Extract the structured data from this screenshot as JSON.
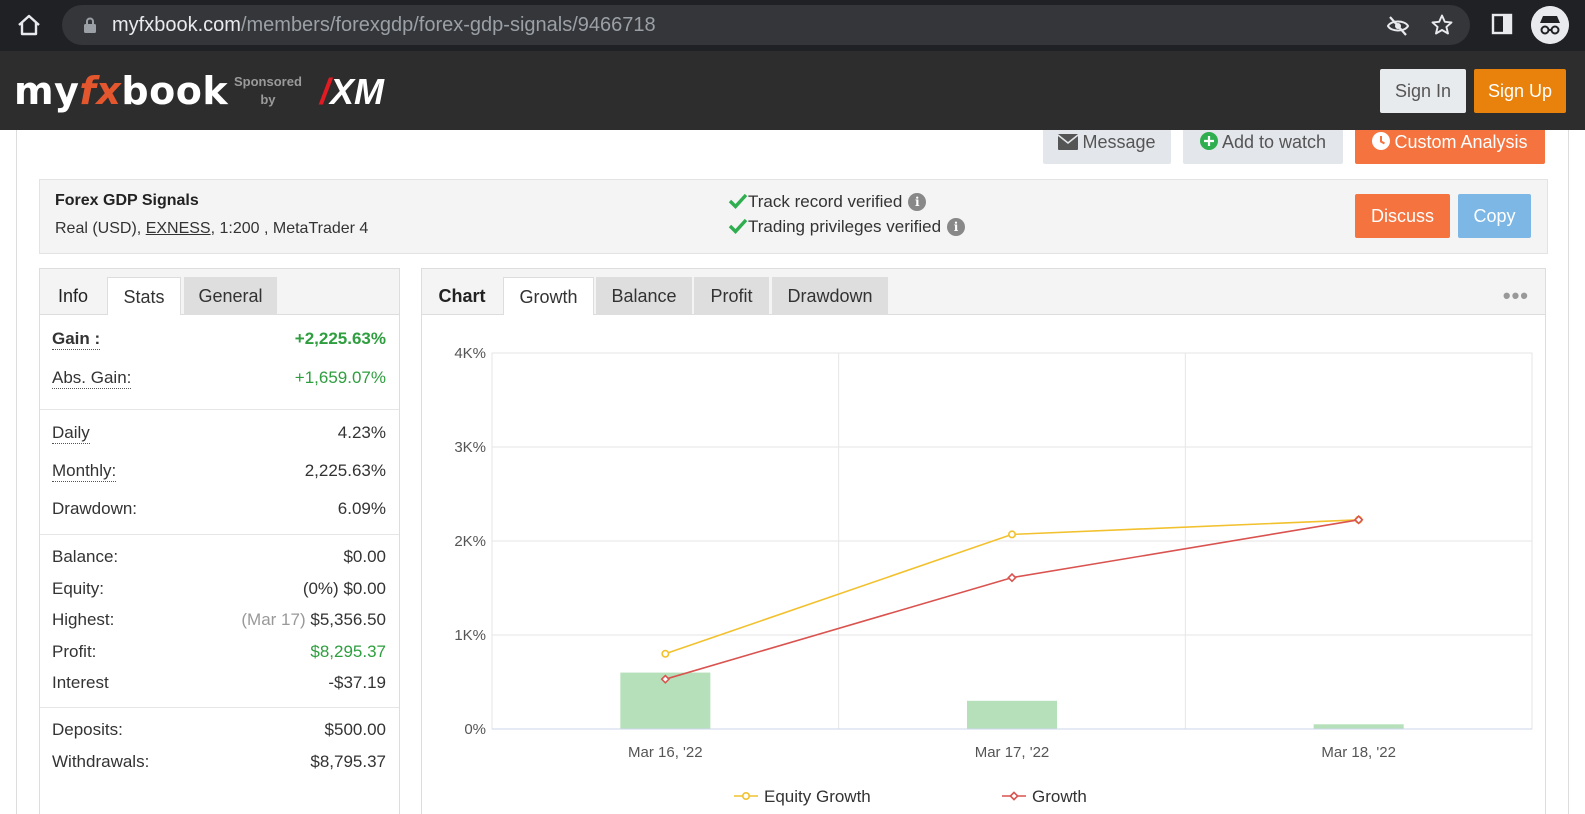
{
  "browser": {
    "url_domain": "myfxbook.com",
    "url_path": "/members/forexgdp/forex-gdp-signals/9466718"
  },
  "header": {
    "logo_my": "my",
    "logo_fx": "fx",
    "logo_book": "book",
    "sponsored_line1": "Sponsored",
    "sponsored_line2": "by",
    "sponsor_name": "XM",
    "sign_in": "Sign In",
    "sign_up": "Sign Up"
  },
  "actions": {
    "message": "Message",
    "add_to_watch": "Add to watch",
    "custom_analysis": "Custom Analysis"
  },
  "account": {
    "name": "Forex GDP Signals",
    "type": "Real (USD),",
    "broker": "EXNESS",
    "details": ", 1:200 , MetaTrader 4",
    "verified_track": "Track record verified",
    "verified_privileges": "Trading privileges verified",
    "discuss": "Discuss",
    "copy": "Copy"
  },
  "stats_tabs": {
    "label": "Info",
    "stats": "Stats",
    "general": "General"
  },
  "stats": {
    "gain_label": "Gain :",
    "gain_value": "+2,225.63%",
    "abs_gain_label": "Abs. Gain:",
    "abs_gain_value": "+1,659.07%",
    "daily_label": "Daily",
    "daily_value": "4.23%",
    "monthly_label": "Monthly:",
    "monthly_value": "2,225.63%",
    "drawdown_label": "Drawdown:",
    "drawdown_value": "6.09%",
    "balance_label": "Balance:",
    "balance_value": "$0.00",
    "equity_label": "Equity:",
    "equity_pct": "(0%)",
    "equity_value": "$0.00",
    "highest_label": "Highest:",
    "highest_date": "(Mar 17)",
    "highest_value": "$5,356.50",
    "profit_label": "Profit:",
    "profit_value": "$8,295.37",
    "interest_label": "Interest",
    "interest_value": "-$37.19",
    "deposits_label": "Deposits:",
    "deposits_value": "$500.00",
    "withdrawals_label": "Withdrawals:",
    "withdrawals_value": "$8,795.37"
  },
  "chart_tabs": {
    "label": "Chart",
    "growth": "Growth",
    "balance": "Balance",
    "profit": "Profit",
    "drawdown": "Drawdown"
  },
  "chart_data": {
    "type": "line",
    "categories": [
      "Mar 16, '22",
      "Mar 17, '22",
      "Mar 18, '22"
    ],
    "y_ticks": [
      "0%",
      "1K%",
      "2K%",
      "3K%",
      "4K%"
    ],
    "ylim": [
      0,
      4000
    ],
    "series": [
      {
        "name": "Equity Growth",
        "values": [
          800,
          2070,
          2225.63
        ],
        "color": "#f2c12e"
      },
      {
        "name": "Growth",
        "values": [
          530,
          1610,
          2225.63
        ],
        "color": "#d9534f"
      }
    ],
    "bars": {
      "values": [
        600,
        300,
        50
      ],
      "color": "#b6e0b9"
    },
    "grid": true,
    "legend_position": "bottom"
  }
}
